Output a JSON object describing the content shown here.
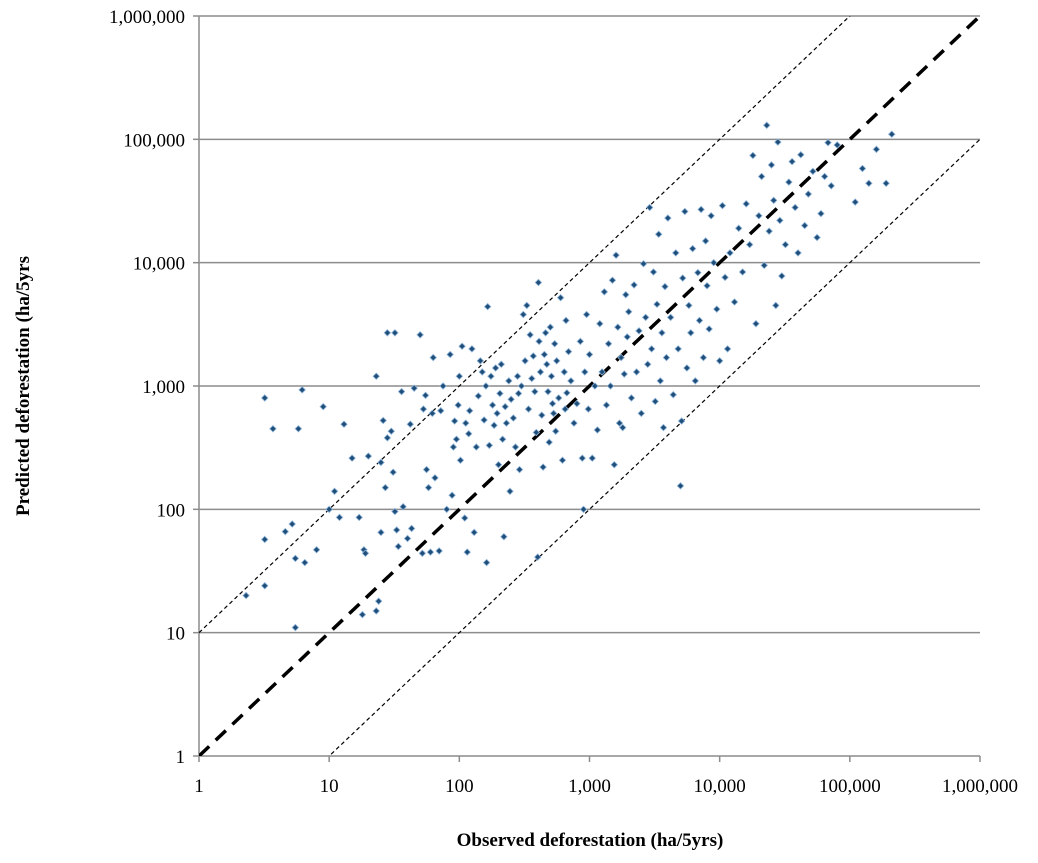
{
  "chart_data": {
    "type": "scatter",
    "title": "",
    "xlabel": "Observed deforestation (ha/5yrs)",
    "ylabel": "Predicted deforestation (ha/5yrs",
    "x_scale": "log",
    "y_scale": "log",
    "xlim": [
      1,
      1000000
    ],
    "ylim": [
      1,
      1000000
    ],
    "x_ticks": [
      1,
      10,
      100,
      1000,
      10000,
      100000,
      1000000
    ],
    "x_tick_labels": [
      "1",
      "10",
      "100",
      "1,000",
      "10,000",
      "100,000",
      "1,000,000"
    ],
    "y_ticks": [
      1,
      10,
      100,
      1000,
      10000,
      100000,
      1000000
    ],
    "y_tick_labels": [
      "1",
      "10",
      "100",
      "1,000",
      "10,000",
      "100,000",
      "1,000,000"
    ],
    "grid": "horizontal",
    "legend": "none",
    "colors": {
      "points": "#1f4e79",
      "point_edge": "#8fb4d9",
      "grid": "#8c8c8c",
      "lines": "#000000"
    },
    "reference_lines": [
      {
        "style": "heavy-dashed",
        "relation": "y = x"
      },
      {
        "style": "thin-dashed",
        "relation": "y = 10x"
      },
      {
        "style": "thin-dashed",
        "relation": "y = x/10"
      }
    ],
    "points": [
      [
        2.3,
        20
      ],
      [
        3.2,
        24
      ],
      [
        3.2,
        57
      ],
      [
        3.2,
        800
      ],
      [
        3.7,
        450
      ],
      [
        4.6,
        66
      ],
      [
        5.2,
        76
      ],
      [
        5.5,
        11
      ],
      [
        5.5,
        40
      ],
      [
        5.8,
        450
      ],
      [
        6.2,
        930
      ],
      [
        6.5,
        37
      ],
      [
        8,
        47
      ],
      [
        9,
        680
      ],
      [
        10,
        100
      ],
      [
        11,
        140
      ],
      [
        12,
        86
      ],
      [
        13,
        490
      ],
      [
        15,
        260
      ],
      [
        17,
        86
      ],
      [
        18,
        14
      ],
      [
        18.5,
        47
      ],
      [
        19,
        44
      ],
      [
        20,
        270
      ],
      [
        23,
        1200
      ],
      [
        23,
        15
      ],
      [
        24,
        18
      ],
      [
        25,
        240
      ],
      [
        25,
        65
      ],
      [
        26,
        525
      ],
      [
        27,
        150
      ],
      [
        28,
        380
      ],
      [
        28,
        2700
      ],
      [
        30,
        430
      ],
      [
        31,
        200
      ],
      [
        32,
        96
      ],
      [
        32,
        2700
      ],
      [
        33,
        68
      ],
      [
        34,
        50
      ],
      [
        36,
        900
      ],
      [
        37,
        105
      ],
      [
        40,
        58
      ],
      [
        42,
        490
      ],
      [
        43,
        70
      ],
      [
        45,
        960
      ],
      [
        50,
        2600
      ],
      [
        52,
        44
      ],
      [
        53,
        650
      ],
      [
        55,
        840
      ],
      [
        56,
        210
      ],
      [
        58,
        150
      ],
      [
        60,
        45
      ],
      [
        62,
        600
      ],
      [
        63,
        1700
      ],
      [
        65,
        180
      ],
      [
        70,
        46
      ],
      [
        72,
        630
      ],
      [
        75,
        1000
      ],
      [
        80,
        100
      ],
      [
        85,
        1800
      ],
      [
        88,
        130
      ],
      [
        90,
        320
      ],
      [
        92,
        520
      ],
      [
        95,
        370
      ],
      [
        98,
        700
      ],
      [
        100,
        1200
      ],
      [
        102,
        250
      ],
      [
        105,
        2100
      ],
      [
        110,
        85
      ],
      [
        112,
        500
      ],
      [
        115,
        45
      ],
      [
        118,
        410
      ],
      [
        120,
        630
      ],
      [
        125,
        2000
      ],
      [
        130,
        65
      ],
      [
        135,
        320
      ],
      [
        140,
        830
      ],
      [
        145,
        1600
      ],
      [
        150,
        1300
      ],
      [
        155,
        530
      ],
      [
        160,
        1000
      ],
      [
        162,
        37
      ],
      [
        165,
        4400
      ],
      [
        170,
        330
      ],
      [
        175,
        1200
      ],
      [
        180,
        700
      ],
      [
        185,
        480
      ],
      [
        190,
        1400
      ],
      [
        195,
        600
      ],
      [
        200,
        230
      ],
      [
        205,
        870
      ],
      [
        210,
        1500
      ],
      [
        215,
        370
      ],
      [
        220,
        60
      ],
      [
        225,
        680
      ],
      [
        230,
        500
      ],
      [
        240,
        1100
      ],
      [
        245,
        140
      ],
      [
        250,
        780
      ],
      [
        260,
        550
      ],
      [
        270,
        320
      ],
      [
        280,
        1200
      ],
      [
        285,
        870
      ],
      [
        290,
        210
      ],
      [
        300,
        1000
      ],
      [
        310,
        3800
      ],
      [
        320,
        1600
      ],
      [
        330,
        4500
      ],
      [
        340,
        650
      ],
      [
        350,
        2600
      ],
      [
        360,
        1150
      ],
      [
        370,
        1750
      ],
      [
        380,
        900
      ],
      [
        390,
        420
      ],
      [
        400,
        41
      ],
      [
        405,
        6900
      ],
      [
        410,
        2300
      ],
      [
        420,
        1300
      ],
      [
        430,
        580
      ],
      [
        440,
        220
      ],
      [
        450,
        1800
      ],
      [
        460,
        2700
      ],
      [
        470,
        1500
      ],
      [
        480,
        900
      ],
      [
        490,
        350
      ],
      [
        500,
        3000
      ],
      [
        510,
        1200
      ],
      [
        520,
        720
      ],
      [
        530,
        600
      ],
      [
        540,
        2200
      ],
      [
        550,
        430
      ],
      [
        560,
        1600
      ],
      [
        580,
        800
      ],
      [
        600,
        5200
      ],
      [
        620,
        250
      ],
      [
        640,
        1300
      ],
      [
        650,
        650
      ],
      [
        660,
        3400
      ],
      [
        670,
        880
      ],
      [
        690,
        1900
      ],
      [
        720,
        1100
      ],
      [
        760,
        500
      ],
      [
        800,
        720
      ],
      [
        850,
        2300
      ],
      [
        880,
        260
      ],
      [
        900,
        100
      ],
      [
        920,
        1300
      ],
      [
        950,
        3800
      ],
      [
        980,
        650
      ],
      [
        1000,
        1800
      ],
      [
        1050,
        260
      ],
      [
        1100,
        1000
      ],
      [
        1150,
        440
      ],
      [
        1200,
        3200
      ],
      [
        1250,
        1300
      ],
      [
        1300,
        5800
      ],
      [
        1350,
        700
      ],
      [
        1400,
        2200
      ],
      [
        1450,
        1000
      ],
      [
        1500,
        7200
      ],
      [
        1550,
        230
      ],
      [
        1600,
        11500
      ],
      [
        1650,
        3000
      ],
      [
        1700,
        500
      ],
      [
        1750,
        1700
      ],
      [
        1800,
        460
      ],
      [
        1850,
        1250
      ],
      [
        1900,
        5500
      ],
      [
        1950,
        2500
      ],
      [
        2000,
        4000
      ],
      [
        2100,
        800
      ],
      [
        2200,
        6600
      ],
      [
        2300,
        1300
      ],
      [
        2400,
        2800
      ],
      [
        2500,
        600
      ],
      [
        2600,
        9800
      ],
      [
        2700,
        3600
      ],
      [
        2800,
        1500
      ],
      [
        2900,
        28000
      ],
      [
        3000,
        2000
      ],
      [
        3100,
        8400
      ],
      [
        3200,
        750
      ],
      [
        3300,
        4600
      ],
      [
        3400,
        17000
      ],
      [
        3500,
        1100
      ],
      [
        3600,
        2700
      ],
      [
        3700,
        460
      ],
      [
        3800,
        6400
      ],
      [
        3900,
        1700
      ],
      [
        4000,
        23000
      ],
      [
        4200,
        3600
      ],
      [
        4400,
        850
      ],
      [
        4600,
        12000
      ],
      [
        4800,
        2000
      ],
      [
        5000,
        155
      ],
      [
        5100,
        520
      ],
      [
        5200,
        7500
      ],
      [
        5400,
        26000
      ],
      [
        5600,
        1400
      ],
      [
        5800,
        4500
      ],
      [
        6000,
        2700
      ],
      [
        6200,
        13000
      ],
      [
        6500,
        1100
      ],
      [
        6800,
        8300
      ],
      [
        7000,
        3400
      ],
      [
        7200,
        27000
      ],
      [
        7500,
        1700
      ],
      [
        7800,
        15000
      ],
      [
        8000,
        6500
      ],
      [
        8300,
        2900
      ],
      [
        8600,
        24000
      ],
      [
        9000,
        10000
      ],
      [
        9500,
        4200
      ],
      [
        10000,
        1600
      ],
      [
        10500,
        29000
      ],
      [
        11000,
        7600
      ],
      [
        11500,
        2000
      ],
      [
        12000,
        12000
      ],
      [
        13000,
        4800
      ],
      [
        14000,
        19000
      ],
      [
        15000,
        8400
      ],
      [
        16000,
        30000
      ],
      [
        17000,
        14000
      ],
      [
        18000,
        74000
      ],
      [
        19000,
        3200
      ],
      [
        20000,
        24000
      ],
      [
        21000,
        50000
      ],
      [
        22000,
        9500
      ],
      [
        23000,
        130000
      ],
      [
        24000,
        18000
      ],
      [
        25000,
        62000
      ],
      [
        26000,
        32000
      ],
      [
        27000,
        4500
      ],
      [
        28000,
        95000
      ],
      [
        29000,
        22000
      ],
      [
        30000,
        7800
      ],
      [
        32000,
        14000
      ],
      [
        34000,
        45000
      ],
      [
        36000,
        66000
      ],
      [
        38000,
        28000
      ],
      [
        40000,
        12000
      ],
      [
        42000,
        75000
      ],
      [
        45000,
        20000
      ],
      [
        48000,
        36000
      ],
      [
        52000,
        55000
      ],
      [
        56000,
        16000
      ],
      [
        60000,
        25000
      ],
      [
        64000,
        50000
      ],
      [
        68000,
        94000
      ],
      [
        72000,
        42000
      ],
      [
        80000,
        90000
      ],
      [
        110000,
        31000
      ],
      [
        125000,
        58000
      ],
      [
        140000,
        44000
      ],
      [
        160000,
        83000
      ],
      [
        190000,
        44000
      ],
      [
        210000,
        110000
      ]
    ]
  }
}
